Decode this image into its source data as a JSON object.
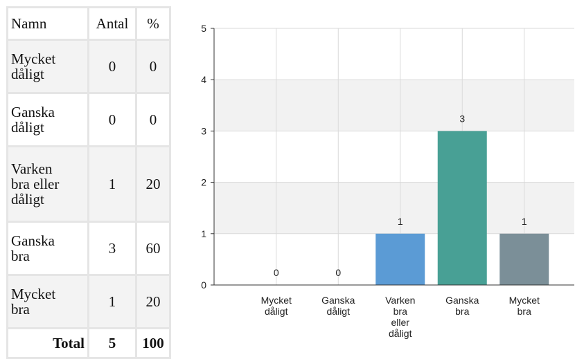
{
  "table": {
    "headers": {
      "name": "Namn",
      "count": "Antal",
      "percent": "%"
    },
    "rows": [
      {
        "name_lines": [
          "Mycket",
          "dåligt"
        ],
        "count": "0",
        "percent": "0"
      },
      {
        "name_lines": [
          "Ganska",
          "dåligt"
        ],
        "count": "0",
        "percent": "0"
      },
      {
        "name_lines": [
          "Varken",
          "bra eller",
          "dåligt"
        ],
        "count": "1",
        "percent": "20"
      },
      {
        "name_lines": [
          "Ganska",
          "bra"
        ],
        "count": "3",
        "percent": "60"
      },
      {
        "name_lines": [
          "Mycket",
          "bra"
        ],
        "count": "1",
        "percent": "20"
      }
    ],
    "total": {
      "label": "Total",
      "count": "5",
      "percent": "100"
    }
  },
  "chart_data": {
    "type": "bar",
    "categories": [
      [
        "Mycket",
        "dåligt"
      ],
      [
        "Ganska",
        "dåligt"
      ],
      [
        "Varken",
        "bra",
        "eller",
        "dåligt"
      ],
      [
        "Ganska",
        "bra"
      ],
      [
        "Mycket",
        "bra"
      ]
    ],
    "values": [
      0,
      0,
      1,
      3,
      1
    ],
    "bar_colors": [
      "#5b9bd5",
      "#5b9bd5",
      "#5b9bd5",
      "#48a095",
      "#7b8f98"
    ],
    "ylim": [
      0,
      5
    ],
    "yticks": [
      0,
      1,
      2,
      3,
      4,
      5
    ],
    "grid": true,
    "band_color": "#f2f2f2",
    "title": "",
    "xlabel": "",
    "ylabel": ""
  }
}
